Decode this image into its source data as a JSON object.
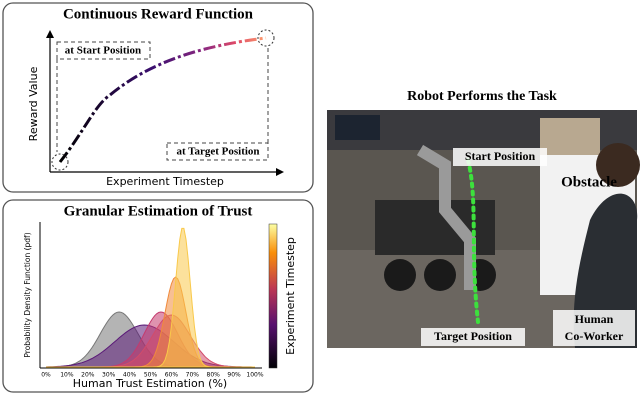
{
  "reward_panel": {
    "title": "Continuous Reward Function",
    "y_label": "Reward Value",
    "x_label": "Experiment Timestep",
    "annotations": [
      "at Start Position",
      "at Target Position"
    ]
  },
  "trust_panel": {
    "title": "Granular Estimation of Trust",
    "y_label": "Probability Density Function (pdf)",
    "x_label": "Human Trust Estimation (%)",
    "x_ticks": [
      "0%",
      "10%",
      "20%",
      "30%",
      "40%",
      "50%",
      "60%",
      "70%",
      "80%",
      "90%",
      "100%"
    ],
    "colorbar_label": "Experiment Timestep"
  },
  "photo_panel": {
    "title": "Robot Performs the Task",
    "start_label": "Start Position",
    "obstacle_label": "Obstacle",
    "target_label": "Target Position",
    "coworker_label": [
      "Human",
      "Co-Worker"
    ]
  }
}
